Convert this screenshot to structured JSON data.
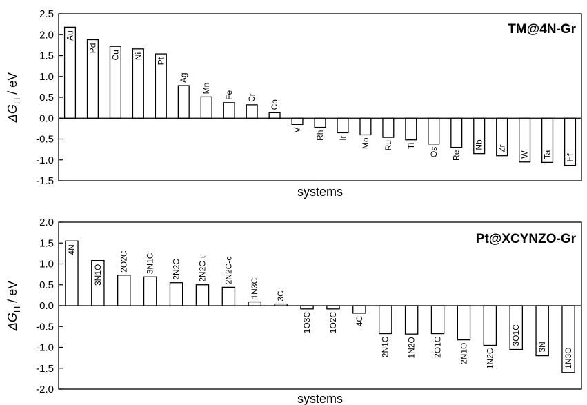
{
  "chart_data": [
    {
      "type": "bar",
      "title": "TM@4N-Gr",
      "xlabel": "systems",
      "ylabel_main": "ΔG",
      "ylabel_sub": "H",
      "ylabel_unit": " / eV",
      "ylim": [
        -1.5,
        2.5
      ],
      "yticks": [
        -1.5,
        -1.0,
        -0.5,
        0.0,
        0.5,
        1.0,
        1.5,
        2.0,
        2.5
      ],
      "ytick_labels": [
        "-1.5",
        "-1.0",
        "-0.5",
        "0.0",
        "0.5",
        "1.0",
        "1.5",
        "2.0",
        "2.5"
      ],
      "grid": false,
      "categories": [
        "Au",
        "Pd",
        "Cu",
        "Ni",
        "Pt",
        "Ag",
        "Mn",
        "Fe",
        "Cr",
        "Co",
        "V",
        "Rh",
        "Ir",
        "Mo",
        "Ru",
        "Ti",
        "Os",
        "Re",
        "Nb",
        "Zr",
        "W",
        "Ta",
        "Hf"
      ],
      "values": [
        2.18,
        1.88,
        1.72,
        1.66,
        1.54,
        0.78,
        0.51,
        0.37,
        0.32,
        0.13,
        -0.15,
        -0.22,
        -0.35,
        -0.4,
        -0.46,
        -0.52,
        -0.62,
        -0.7,
        -0.85,
        -0.9,
        -1.05,
        -1.06,
        -1.13
      ],
      "label_inside": [
        true,
        true,
        true,
        true,
        true,
        false,
        false,
        false,
        false,
        false,
        false,
        false,
        false,
        false,
        false,
        false,
        false,
        false,
        true,
        true,
        true,
        true,
        true
      ]
    },
    {
      "type": "bar",
      "title": "Pt@XCYNZO-Gr",
      "xlabel": "systems",
      "ylabel_main": "ΔG",
      "ylabel_sub": "H",
      "ylabel_unit": " / eV",
      "ylim": [
        -2.0,
        2.0
      ],
      "yticks": [
        -2.0,
        -1.5,
        -1.0,
        -0.5,
        0.0,
        0.5,
        1.0,
        1.5,
        2.0
      ],
      "ytick_labels": [
        "-2.0",
        "-1.5",
        "-1.0",
        "-0.5",
        "0.0",
        "0.5",
        "1.0",
        "1.5",
        "2.0"
      ],
      "grid": false,
      "categories": [
        "4N",
        "3N1O",
        "2O2C",
        "3N1C",
        "2N2C",
        "2N2C-t",
        "2N2C-c",
        "1N3C",
        "3C",
        "1O3C",
        "1O2C",
        "4C",
        "2N1C",
        "1N2O",
        "2O1C",
        "2N1O",
        "1N2C",
        "3O1C",
        "3N",
        "1N3O"
      ],
      "values": [
        1.55,
        1.08,
        0.73,
        0.69,
        0.55,
        0.5,
        0.44,
        0.09,
        0.04,
        -0.08,
        -0.08,
        -0.18,
        -0.67,
        -0.68,
        -0.67,
        -0.82,
        -0.95,
        -1.05,
        -1.2,
        -1.6
      ],
      "label_inside": [
        true,
        true,
        false,
        false,
        false,
        false,
        false,
        false,
        false,
        false,
        false,
        false,
        false,
        false,
        false,
        false,
        false,
        true,
        true,
        true
      ]
    }
  ]
}
